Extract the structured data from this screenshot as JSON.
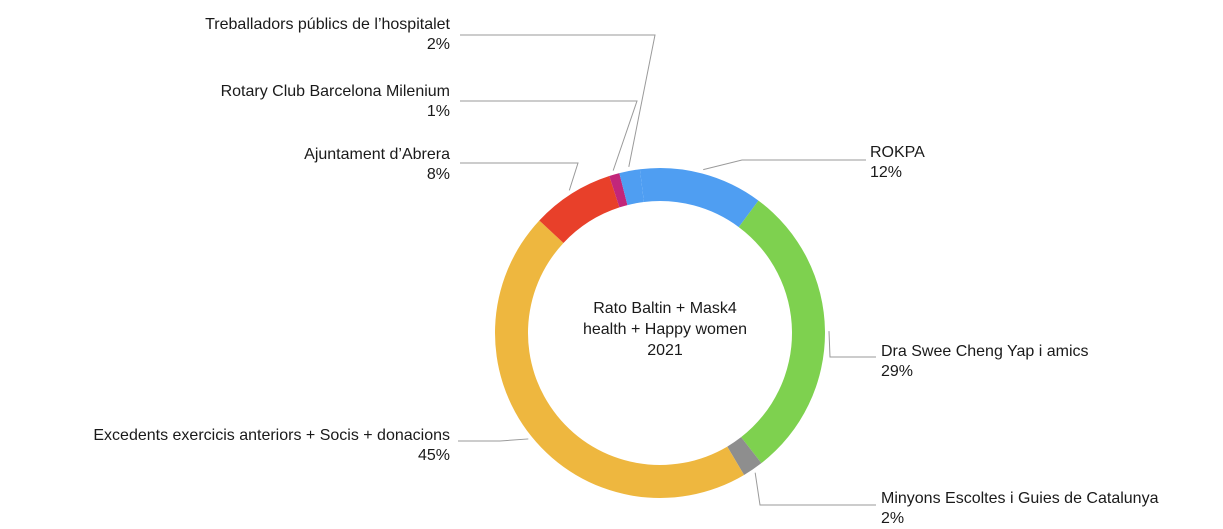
{
  "chart_data": {
    "type": "pie",
    "style": "donut",
    "center_title_lines": [
      "Rato Baltin + Mask4",
      "health + Happy women",
      "2021"
    ],
    "slices": [
      {
        "label": "ROKPA",
        "pct_label": "12%",
        "value": 12,
        "color": "#4f9ef2"
      },
      {
        "label": "Dra Swee Cheng Yap i amics",
        "pct_label": "29%",
        "value": 29,
        "color": "#7ed14f"
      },
      {
        "label": "Minyons Escoltes i Guies de Catalunya",
        "pct_label": "2%",
        "value": 2,
        "color": "#8e8e8e"
      },
      {
        "label": "Excedents exercicis anteriors + Socis + donacions",
        "pct_label": "45%",
        "value": 45,
        "color": "#eeb73f"
      },
      {
        "label": "Ajuntament d’Abrera",
        "pct_label": "8%",
        "value": 8,
        "color": "#e8402a"
      },
      {
        "label": "Rotary Club Barcelona  Milenium",
        "pct_label": "1%",
        "value": 1,
        "color": "#c2267a"
      },
      {
        "label": "Treballadors públics de l’hospitalet",
        "pct_label": "2%",
        "value": 2,
        "color": "#4f9ef2"
      }
    ]
  }
}
